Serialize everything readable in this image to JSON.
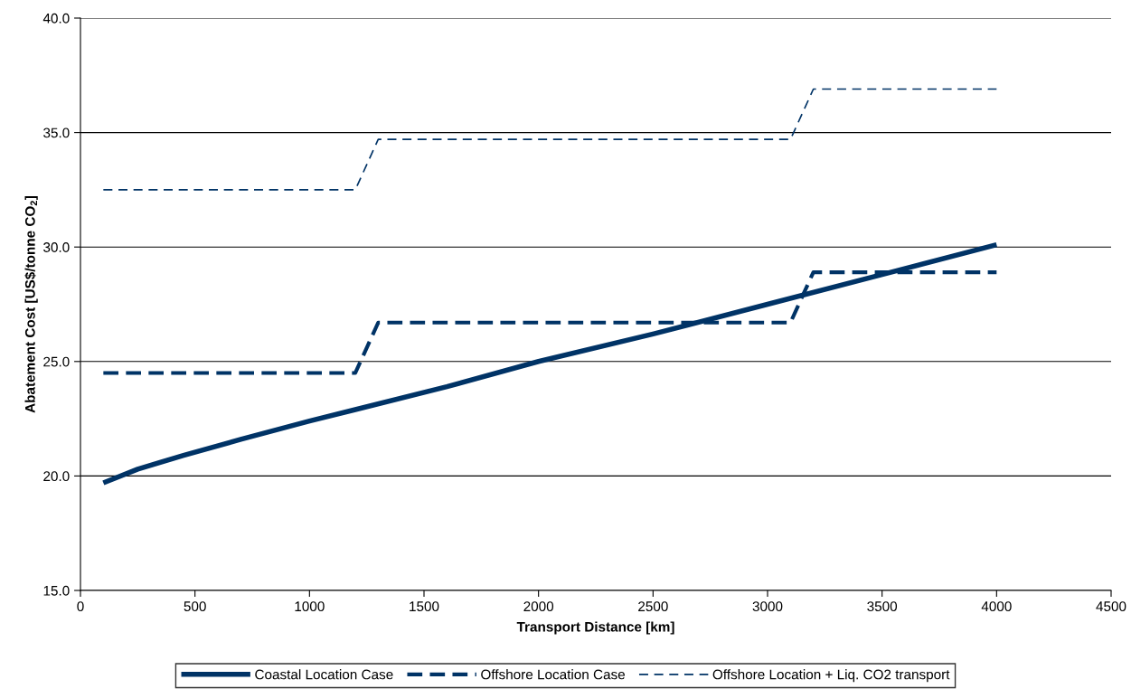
{
  "chart_data": {
    "type": "line",
    "xlabel": "Transport Distance [km]",
    "ylabel": "Abatement Cost [US$/tonne CO$_{2}$]",
    "xlim": [
      0,
      4500
    ],
    "xticks": [
      0,
      500,
      1000,
      1500,
      2000,
      2500,
      3000,
      3500,
      4000,
      4500
    ],
    "ylim": [
      15,
      40
    ],
    "yticks": [
      {
        "value": 15,
        "label": "15.0"
      },
      {
        "value": 20,
        "label": "20.0"
      },
      {
        "value": 25,
        "label": "25.0"
      },
      {
        "value": 30,
        "label": "30.0"
      },
      {
        "value": 35,
        "label": "35.0"
      },
      {
        "value": 40,
        "label": "40.0"
      }
    ],
    "grid": "y",
    "legend": "bottom",
    "marker": "none",
    "series": [
      {
        "name": "Coastal Location Case",
        "color": "#003366",
        "line_style": "solid",
        "x": [
          100,
          250,
          450,
          700,
          1000,
          1200,
          1600,
          2000,
          2500,
          3000,
          3500,
          4000
        ],
        "values": [
          19.7,
          20.3,
          20.9,
          21.6,
          22.4,
          22.9,
          23.9,
          25.0,
          26.2,
          27.5,
          28.8,
          30.1
        ]
      },
      {
        "name": "Offshore Location Case",
        "color": "#003366",
        "line_style": "dashed",
        "x": [
          100,
          1200,
          1300,
          3100,
          3200,
          4000
        ],
        "values": [
          24.5,
          24.5,
          26.7,
          26.7,
          28.9,
          28.9
        ]
      },
      {
        "name": "Offshore Location + Liq. CO2 transport",
        "color": "#003366",
        "line_style": "dashed",
        "x": [
          100,
          1200,
          1300,
          3100,
          3200,
          4000
        ],
        "values": [
          32.5,
          32.5,
          34.7,
          34.7,
          36.9,
          36.9
        ]
      }
    ]
  }
}
